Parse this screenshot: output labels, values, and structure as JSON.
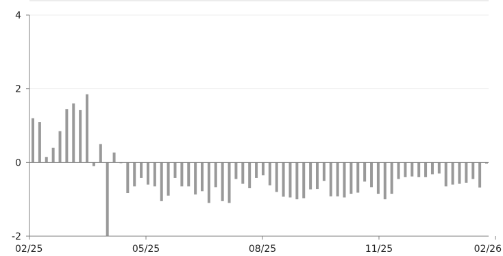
{
  "chart_data": {
    "type": "bar",
    "title": "",
    "xlabel": "",
    "ylabel": "",
    "ylim": [
      -2,
      4
    ],
    "yticks": [
      -2,
      0,
      2,
      4
    ],
    "ytick_labels": [
      "-2",
      "0",
      "2",
      "4"
    ],
    "xticks": [
      {
        "label": "02/25",
        "pos": 0
      },
      {
        "label": "05/25",
        "pos": 17
      },
      {
        "label": "08/25",
        "pos": 34
      },
      {
        "label": "11/25",
        "pos": 51
      },
      {
        "label": "02/26",
        "pos": 68
      }
    ],
    "grid": true,
    "legend": "none",
    "bar_color": "#999999",
    "axis_color": "#7f7f7f",
    "grid_color": "#eeeeee",
    "values": [
      1.2,
      1.1,
      0.15,
      0.4,
      0.85,
      1.45,
      1.6,
      1.42,
      1.85,
      -0.1,
      0.5,
      -2.1,
      0.27,
      -0.02,
      -0.83,
      -0.65,
      -0.42,
      -0.6,
      -0.65,
      -1.05,
      -0.9,
      -0.42,
      -0.65,
      -0.65,
      -0.87,
      -0.78,
      -1.1,
      -0.67,
      -1.05,
      -1.1,
      -0.45,
      -0.58,
      -0.7,
      -0.42,
      -0.35,
      -0.62,
      -0.8,
      -0.93,
      -0.95,
      -1.0,
      -0.97,
      -0.73,
      -0.72,
      -0.5,
      -0.92,
      -0.92,
      -0.95,
      -0.85,
      -0.82,
      -0.52,
      -0.67,
      -0.85,
      -1.0,
      -0.85,
      -0.45,
      -0.4,
      -0.38,
      -0.4,
      -0.4,
      -0.32,
      -0.3,
      -0.65,
      -0.6,
      -0.58,
      -0.55,
      -0.45,
      -0.68,
      -0.03
    ]
  }
}
